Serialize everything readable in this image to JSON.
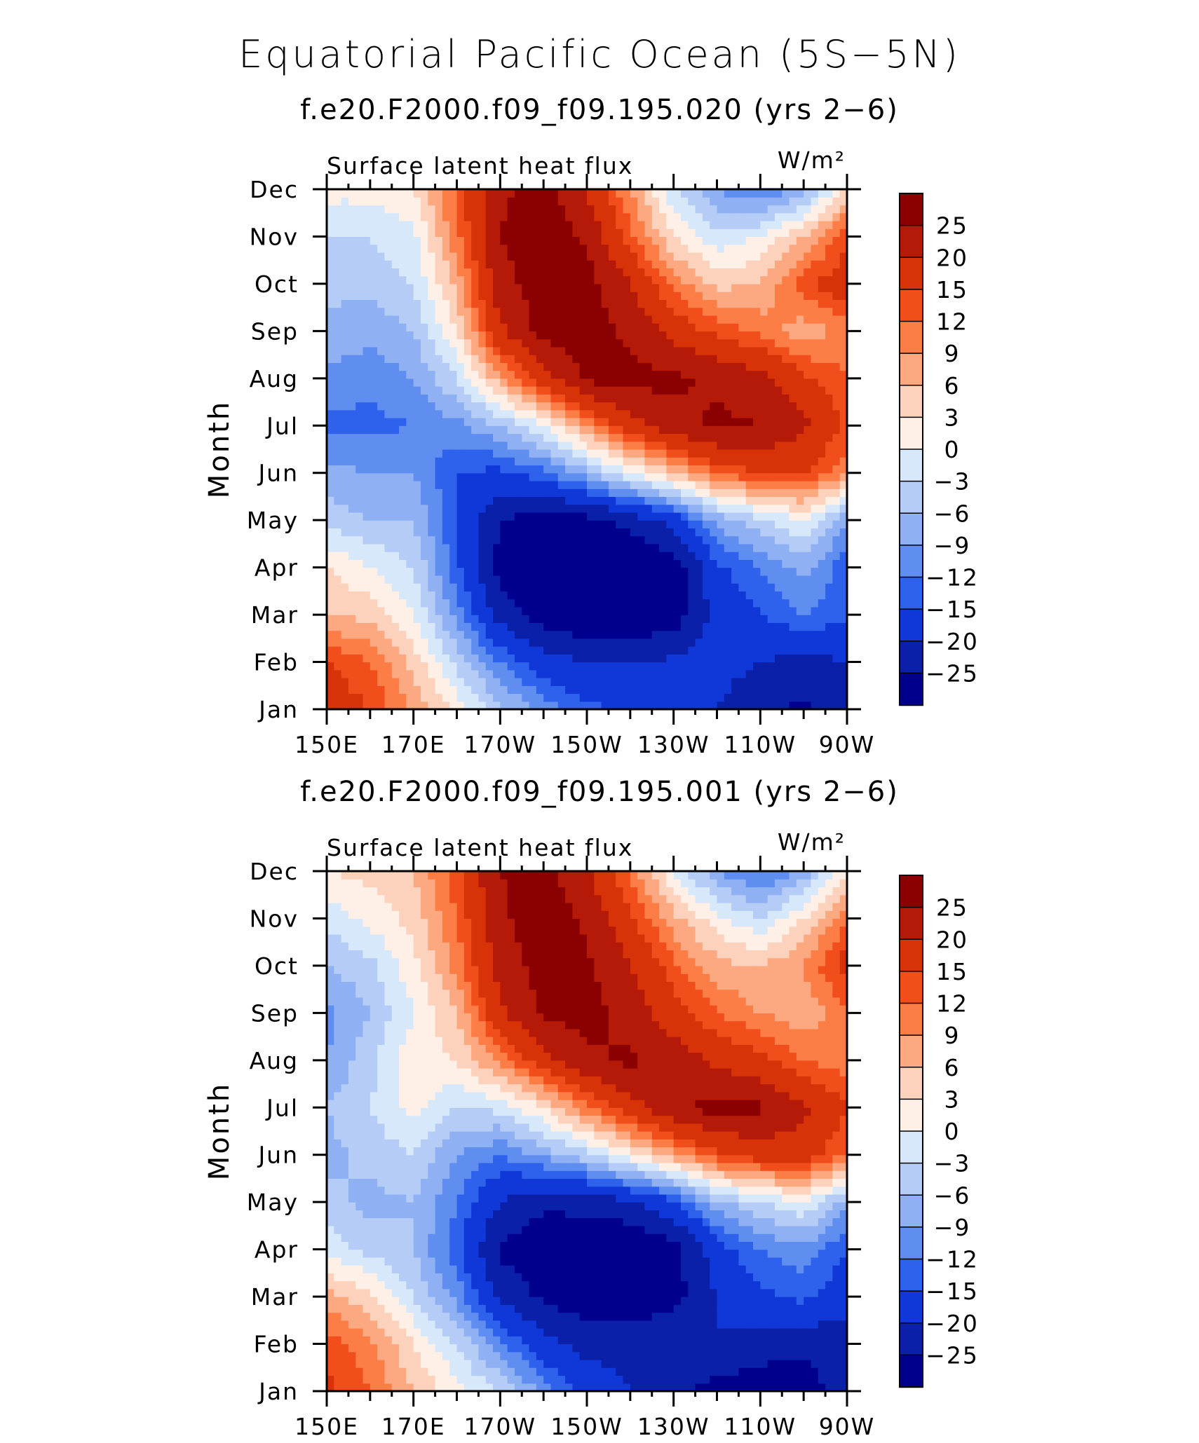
{
  "main_title": "Equatorial Pacific Ocean (5S−5N)",
  "colorbar": {
    "levels": [
      -25,
      -20,
      -15,
      -12,
      -9,
      -6,
      -3,
      0,
      3,
      6,
      9,
      12,
      15,
      20,
      25
    ],
    "labels": [
      "25",
      "20",
      "15",
      "12",
      "9",
      "6",
      "3",
      "0",
      "−3",
      "−6",
      "−9",
      "−12",
      "−15",
      "−20",
      "−25"
    ],
    "colors": [
      "#8b0000",
      "#b41a07",
      "#d83208",
      "#f24e1c",
      "#fc7e46",
      "#fca982",
      "#fdd2bd",
      "#fef0e6",
      "#d8e8fb",
      "#b4ccf6",
      "#8fb1f3",
      "#5f8ef0",
      "#2f62ec",
      "#1038d8",
      "#0a20a8",
      "#00008c"
    ]
  },
  "panels": [
    {
      "title": "f.e20.F2000.f09_f09.195.020 (yrs 2−6)",
      "left_label": "Surface latent heat flux",
      "right_label": "W/m²"
    },
    {
      "title": "f.e20.F2000.f09_f09.195.001 (yrs 2−6)",
      "left_label": "Surface latent heat flux",
      "right_label": "W/m²"
    }
  ],
  "axes": {
    "xlabel": "",
    "ylabel": "Month",
    "x_ticks": [
      "150E",
      "170E",
      "170W",
      "150W",
      "130W",
      "110W",
      "90W"
    ],
    "y_ticks": [
      "Jan",
      "Feb",
      "Mar",
      "Apr",
      "May",
      "Jun",
      "Jul",
      "Aug",
      "Sep",
      "Oct",
      "Nov",
      "Dec"
    ]
  },
  "chart_data": [
    {
      "type": "heatmap",
      "title": "f.e20.F2000.f09_f09.195.020 (yrs 2−6)",
      "subtitle": "Surface latent heat flux",
      "units": "W/m²",
      "xlabel": "",
      "ylabel": "Month",
      "x": [
        150,
        160,
        170,
        180,
        190,
        200,
        210,
        220,
        230,
        240,
        250,
        260,
        270
      ],
      "x_tick_labels": [
        "150E",
        "170E",
        "170W",
        "150W",
        "130W",
        "110W",
        "90W"
      ],
      "y": [
        "Jan",
        "Feb",
        "Mar",
        "Apr",
        "May",
        "Jun",
        "Jul",
        "Aug",
        "Sep",
        "Oct",
        "Nov",
        "Dec"
      ],
      "z": [
        [
          18,
          15,
          8,
          2,
          -5,
          -10,
          -14,
          -16,
          -18,
          -20,
          -24,
          -26,
          -22
        ],
        [
          15,
          12,
          5,
          -4,
          -12,
          -18,
          -20,
          -20,
          -19,
          -18,
          -20,
          -22,
          -20
        ],
        [
          6,
          5,
          0,
          -10,
          -22,
          -28,
          -30,
          -30,
          -28,
          -18,
          -15,
          -12,
          -14
        ],
        [
          3,
          0,
          -3,
          -14,
          -27,
          -30,
          -31,
          -31,
          -28,
          -16,
          -12,
          -8,
          -14
        ],
        [
          -4,
          -6,
          -6,
          -15,
          -25,
          -28,
          -27,
          -23,
          -18,
          -8,
          -4,
          0,
          -9
        ],
        [
          -8,
          -9,
          -9,
          -15,
          -16,
          -13,
          -7,
          0,
          6,
          12,
          15,
          15,
          10
        ],
        [
          -13,
          -13,
          -12,
          -10,
          -6,
          0,
          9,
          18,
          23,
          26,
          25,
          21,
          14
        ],
        [
          -10,
          -11,
          -9,
          -3,
          8,
          18,
          26,
          27,
          26,
          24,
          22,
          16,
          12
        ],
        [
          -7,
          -8,
          -6,
          3,
          19,
          27,
          27,
          24,
          18,
          14,
          11,
          7,
          10
        ],
        [
          -5,
          -5,
          -3,
          7,
          23,
          28,
          27,
          20,
          11,
          5,
          6,
          14,
          18
        ],
        [
          -3,
          -3,
          -1,
          11,
          25,
          29,
          24,
          13,
          3,
          -2,
          0,
          6,
          14
        ],
        [
          1,
          1,
          3,
          13,
          24,
          27,
          19,
          9,
          -3,
          -9,
          -12,
          -8,
          4
        ]
      ],
      "levels": [
        -25,
        -20,
        -15,
        -12,
        -9,
        -6,
        -3,
        0,
        3,
        6,
        9,
        12,
        15,
        20,
        25
      ]
    },
    {
      "type": "heatmap",
      "title": "f.e20.F2000.f09_f09.195.001 (yrs 2−6)",
      "subtitle": "Surface latent heat flux",
      "units": "W/m²",
      "xlabel": "",
      "ylabel": "Month",
      "x": [
        150,
        160,
        170,
        180,
        190,
        200,
        210,
        220,
        230,
        240,
        250,
        260,
        270
      ],
      "x_tick_labels": [
        "150E",
        "170E",
        "170W",
        "150W",
        "130W",
        "110W",
        "90W"
      ],
      "y": [
        "Jan",
        "Feb",
        "Mar",
        "Apr",
        "May",
        "Jun",
        "Jul",
        "Aug",
        "Sep",
        "Oct",
        "Nov",
        "Dec"
      ],
      "z": [
        [
          16,
          12,
          6,
          1,
          -3,
          -10,
          -16,
          -20,
          -24,
          -27,
          -29,
          -28,
          -22
        ],
        [
          14,
          10,
          3,
          -3,
          -11,
          -18,
          -22,
          -22,
          -20,
          -20,
          -22,
          -24,
          -22
        ],
        [
          7,
          4,
          -3,
          -10,
          -21,
          -26,
          -28,
          -29,
          -27,
          -20,
          -16,
          -14,
          -18
        ],
        [
          -1,
          -4,
          -6,
          -14,
          -26,
          -29,
          -30,
          -30,
          -27,
          -17,
          -12,
          -10,
          -15
        ],
        [
          -5,
          -7,
          -6,
          -12,
          -20,
          -24,
          -23,
          -21,
          -16,
          -7,
          -3,
          0,
          -8
        ],
        [
          -7,
          -5,
          -3,
          -9,
          -12,
          -8,
          -4,
          2,
          8,
          14,
          17,
          17,
          12
        ],
        [
          -6,
          -3,
          1,
          -3,
          -2,
          3,
          11,
          18,
          24,
          27,
          26,
          21,
          15
        ],
        [
          -9,
          -4,
          2,
          3,
          10,
          18,
          24,
          26,
          23,
          19,
          16,
          12,
          10
        ],
        [
          -10,
          -6,
          0,
          6,
          19,
          26,
          27,
          23,
          17,
          12,
          9,
          7,
          11
        ],
        [
          -6,
          -4,
          2,
          10,
          22,
          27,
          26,
          20,
          13,
          7,
          6,
          9,
          17
        ],
        [
          -2,
          1,
          4,
          12,
          24,
          28,
          24,
          16,
          7,
          1,
          -3,
          3,
          12
        ],
        [
          3,
          4,
          6,
          14,
          25,
          27,
          21,
          11,
          0,
          -9,
          -13,
          -8,
          3
        ]
      ],
      "levels": [
        -25,
        -20,
        -15,
        -12,
        -9,
        -6,
        -3,
        0,
        3,
        6,
        9,
        12,
        15,
        20,
        25
      ]
    }
  ]
}
